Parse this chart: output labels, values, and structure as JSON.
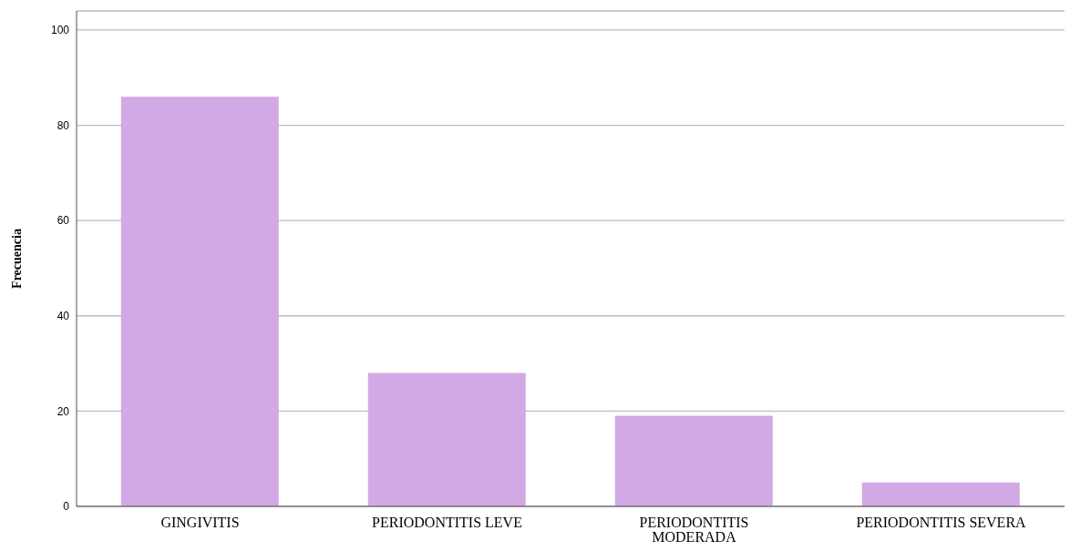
{
  "chart_data": {
    "type": "bar",
    "ylabel": "Frecuencia",
    "categories": [
      "GINGIVITIS",
      "PERIODONTITIS LEVE",
      "PERIODONTITIS MODERADA",
      "PERIODONTITIS SEVERA"
    ],
    "values": [
      86,
      28,
      19,
      5
    ],
    "color": "#d0a9e5",
    "ylim": [
      0,
      104
    ],
    "yticks": [
      0,
      20,
      40,
      60,
      80,
      100
    ],
    "grid": "y"
  }
}
